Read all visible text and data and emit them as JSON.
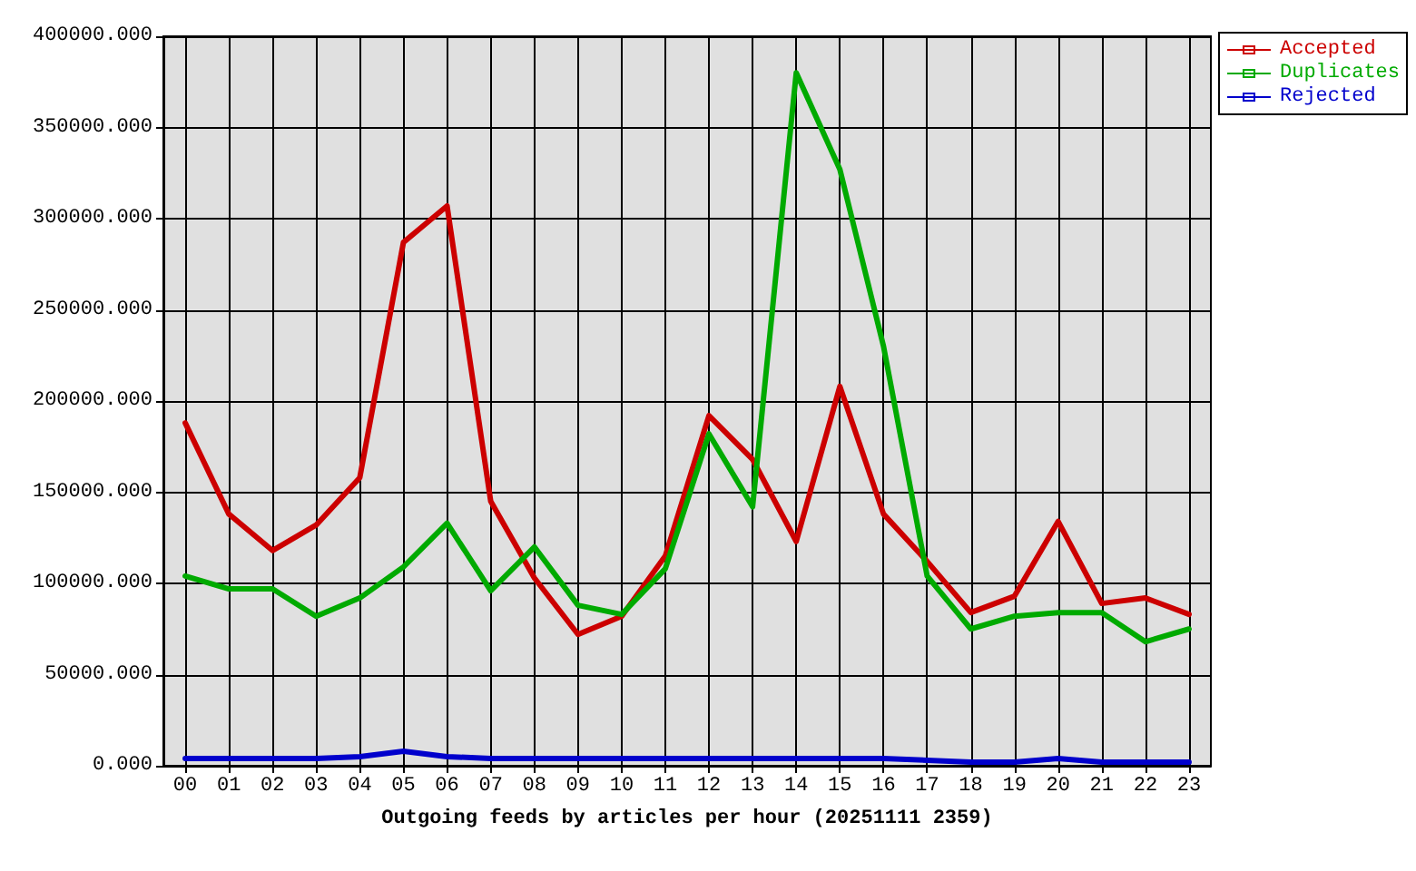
{
  "chart_data": {
    "type": "line",
    "xlabel": "Outgoing feeds by articles per hour (20251111 2359)",
    "categories": [
      "00",
      "01",
      "02",
      "03",
      "04",
      "05",
      "06",
      "07",
      "08",
      "09",
      "10",
      "11",
      "12",
      "13",
      "14",
      "15",
      "16",
      "17",
      "18",
      "19",
      "20",
      "21",
      "22",
      "23"
    ],
    "series": [
      {
        "name": "Accepted",
        "color": "#cc0000",
        "values": [
          188000,
          138000,
          118000,
          132000,
          158000,
          287000,
          307000,
          145000,
          103000,
          72000,
          82000,
          115000,
          192000,
          168000,
          123000,
          208000,
          138000,
          112000,
          84000,
          93000,
          134000,
          89000,
          92000,
          83000
        ]
      },
      {
        "name": "Duplicates",
        "color": "#00aa00",
        "values": [
          104000,
          97000,
          97000,
          82000,
          92000,
          109000,
          133000,
          96000,
          120000,
          88000,
          83000,
          108000,
          182000,
          142000,
          380000,
          327000,
          230000,
          104000,
          75000,
          82000,
          84000,
          84000,
          68000,
          75000
        ]
      },
      {
        "name": "Rejected",
        "color": "#0000cc",
        "values": [
          4000,
          4000,
          4000,
          4000,
          5000,
          8000,
          5000,
          4000,
          4000,
          4000,
          4000,
          4000,
          4000,
          4000,
          4000,
          4000,
          4000,
          3000,
          2000,
          2000,
          4000,
          2000,
          2000,
          2000
        ]
      }
    ],
    "ylim": [
      0,
      400000
    ],
    "yticks": [
      {
        "value": 0,
        "label": "0.000"
      },
      {
        "value": 50000,
        "label": "50000.000"
      },
      {
        "value": 100000,
        "label": "100000.000"
      },
      {
        "value": 150000,
        "label": "150000.000"
      },
      {
        "value": 200000,
        "label": "200000.000"
      },
      {
        "value": 250000,
        "label": "250000.000"
      },
      {
        "value": 300000,
        "label": "300000.000"
      },
      {
        "value": 350000,
        "label": "350000.000"
      },
      {
        "value": 400000,
        "label": "400000.000"
      }
    ],
    "grid": true,
    "legend": "top right",
    "line_style": "solid"
  }
}
